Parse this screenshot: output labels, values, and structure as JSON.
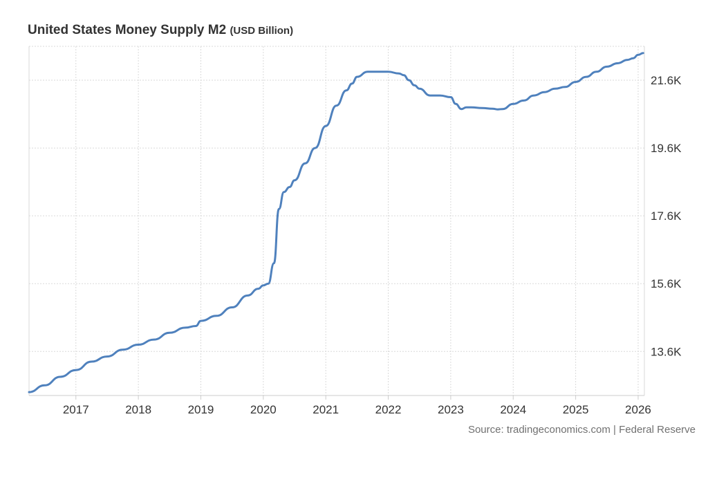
{
  "chart_data": {
    "type": "line",
    "title": "United States Money Supply M2",
    "unit": "(USD Billion)",
    "source": "Source: tradingeconomics.com | Federal Reserve",
    "colors": {
      "line": "#4f81bd",
      "grid": "#d9d9d9",
      "text": "#333333",
      "source_text": "#707070"
    },
    "grid": true,
    "y_axis_side": "right",
    "xlim": [
      2016.25,
      2026.1
    ],
    "ylim": [
      12300,
      22600
    ],
    "x_ticks": [
      {
        "value": 2017,
        "label": "2017"
      },
      {
        "value": 2018,
        "label": "2018"
      },
      {
        "value": 2019,
        "label": "2019"
      },
      {
        "value": 2020,
        "label": "2020"
      },
      {
        "value": 2021,
        "label": "2021"
      },
      {
        "value": 2022,
        "label": "2022"
      },
      {
        "value": 2023,
        "label": "2023"
      },
      {
        "value": 2024,
        "label": "2024"
      },
      {
        "value": 2025,
        "label": "2025"
      },
      {
        "value": 2026,
        "label": "2026"
      }
    ],
    "y_ticks": [
      {
        "value": 13600,
        "label": "13.6K"
      },
      {
        "value": 15600,
        "label": "15.6K"
      },
      {
        "value": 17600,
        "label": "17.6K"
      },
      {
        "value": 19600,
        "label": "19.6K"
      },
      {
        "value": 21600,
        "label": "21.6K"
      }
    ],
    "series": [
      {
        "color": "#4f81bd",
        "x": [
          2016.25,
          2016.5,
          2016.75,
          2017.0,
          2017.25,
          2017.5,
          2017.75,
          2018.0,
          2018.25,
          2018.5,
          2018.75,
          2018.92,
          2019.0,
          2019.25,
          2019.5,
          2019.75,
          2019.92,
          2020.0,
          2020.08,
          2020.17,
          2020.25,
          2020.33,
          2020.42,
          2020.5,
          2020.67,
          2020.83,
          2021.0,
          2021.17,
          2021.33,
          2021.42,
          2021.5,
          2021.67,
          2021.83,
          2022.0,
          2022.17,
          2022.25,
          2022.33,
          2022.42,
          2022.5,
          2022.67,
          2022.83,
          2023.0,
          2023.08,
          2023.17,
          2023.25,
          2023.33,
          2023.5,
          2023.67,
          2023.75,
          2023.83,
          2024.0,
          2024.17,
          2024.33,
          2024.5,
          2024.67,
          2024.83,
          2025.0,
          2025.17,
          2025.33,
          2025.5,
          2025.67,
          2025.83,
          2025.92,
          2026.0,
          2026.08
        ],
        "y": [
          12400,
          12600,
          12850,
          13050,
          13300,
          13450,
          13650,
          13800,
          13950,
          14150,
          14300,
          14350,
          14500,
          14650,
          14900,
          15250,
          15450,
          15550,
          15600,
          16200,
          17800,
          18300,
          18450,
          18650,
          19150,
          19600,
          20250,
          20850,
          21300,
          21500,
          21700,
          21850,
          21850,
          21850,
          21800,
          21750,
          21600,
          21450,
          21350,
          21150,
          21150,
          21100,
          20900,
          20750,
          20800,
          20800,
          20780,
          20760,
          20740,
          20750,
          20900,
          21000,
          21150,
          21250,
          21350,
          21400,
          21550,
          21700,
          21850,
          22000,
          22100,
          22200,
          22250,
          22350,
          22400
        ]
      }
    ]
  }
}
